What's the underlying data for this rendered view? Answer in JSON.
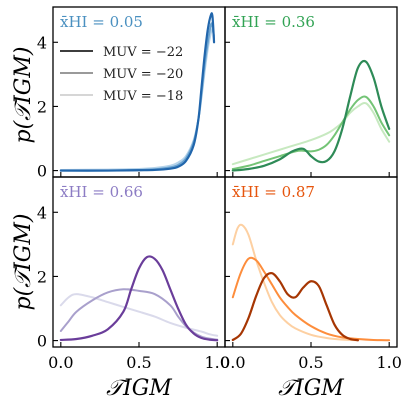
{
  "figure": {
    "ylabel": "p(𝒯IGM)",
    "xlabel": "𝒯IGM"
  },
  "chart_data": [
    {
      "type": "line",
      "panel": "top-left",
      "annotation": "x̄HI = 0.05",
      "annotation_color": "#4a90c0",
      "xlim": [
        -0.05,
        1.05
      ],
      "ylim": [
        -0.2,
        5.1
      ],
      "yticks": [
        "0",
        "2",
        "4"
      ],
      "xticks": [],
      "legend": {
        "placement": "upper-left",
        "entries": [
          {
            "label": "MUV = −22",
            "color": "#222222"
          },
          {
            "label": "MUV = −20",
            "color": "#8c8c8c"
          },
          {
            "label": "MUV = −18",
            "color": "#d0d0d0"
          }
        ]
      },
      "series": [
        {
          "color": "#2166ac",
          "width": 2.2,
          "x": [
            0,
            0.3,
            0.5,
            0.6,
            0.7,
            0.75,
            0.8,
            0.85,
            0.88,
            0.9,
            0.92,
            0.94,
            0.96,
            0.97,
            0.98
          ],
          "y": [
            0,
            0,
            0.01,
            0.02,
            0.06,
            0.12,
            0.3,
            0.8,
            1.6,
            2.6,
            3.6,
            4.4,
            4.85,
            4.8,
            4.0
          ]
        },
        {
          "color": "#6aa3d0",
          "width": 2.0,
          "x": [
            0,
            0.3,
            0.5,
            0.6,
            0.7,
            0.75,
            0.8,
            0.85,
            0.88,
            0.9,
            0.92,
            0.94,
            0.96,
            0.97,
            0.98
          ],
          "y": [
            0,
            0,
            0.02,
            0.04,
            0.1,
            0.18,
            0.38,
            0.9,
            1.6,
            2.4,
            3.3,
            4.0,
            4.55,
            4.5,
            4.1
          ]
        },
        {
          "color": "#b5d3ea",
          "width": 2.0,
          "x": [
            0,
            0.3,
            0.5,
            0.6,
            0.7,
            0.75,
            0.8,
            0.85,
            0.88,
            0.9,
            0.92,
            0.94,
            0.96,
            0.97,
            0.98
          ],
          "y": [
            0.02,
            0.03,
            0.05,
            0.08,
            0.15,
            0.25,
            0.45,
            0.95,
            1.6,
            2.3,
            3.1,
            3.8,
            4.3,
            4.4,
            4.2
          ]
        }
      ]
    },
    {
      "type": "line",
      "panel": "top-right",
      "annotation": "x̄HI = 0.36",
      "annotation_color": "#31a354",
      "xlim": [
        -0.05,
        1.05
      ],
      "ylim": [
        -0.2,
        5.1
      ],
      "yticks": [],
      "xticks": [],
      "series": [
        {
          "color": "#2e8b57",
          "width": 2.2,
          "x": [
            0,
            0.1,
            0.2,
            0.3,
            0.38,
            0.45,
            0.5,
            0.55,
            0.6,
            0.65,
            0.7,
            0.75,
            0.8,
            0.85,
            0.9,
            0.95,
            1.0
          ],
          "y": [
            0,
            0.05,
            0.15,
            0.35,
            0.6,
            0.68,
            0.45,
            0.28,
            0.3,
            0.6,
            1.3,
            2.3,
            3.2,
            3.4,
            2.9,
            2.0,
            1.3
          ]
        },
        {
          "color": "#74c476",
          "width": 2.0,
          "x": [
            0,
            0.1,
            0.2,
            0.3,
            0.4,
            0.45,
            0.5,
            0.55,
            0.6,
            0.65,
            0.7,
            0.75,
            0.8,
            0.85,
            0.9,
            0.95,
            1.0
          ],
          "y": [
            0.05,
            0.15,
            0.3,
            0.45,
            0.6,
            0.62,
            0.6,
            0.65,
            0.8,
            1.1,
            1.5,
            1.9,
            2.2,
            2.3,
            2.0,
            1.5,
            1.1
          ]
        },
        {
          "color": "#c7e9c0",
          "width": 2.0,
          "x": [
            0,
            0.1,
            0.2,
            0.3,
            0.4,
            0.5,
            0.6,
            0.65,
            0.7,
            0.75,
            0.8,
            0.85,
            0.9,
            0.95,
            1.0
          ],
          "y": [
            0.2,
            0.35,
            0.5,
            0.65,
            0.8,
            0.95,
            1.15,
            1.3,
            1.5,
            1.8,
            2.0,
            2.1,
            1.8,
            1.3,
            0.9
          ]
        }
      ]
    },
    {
      "type": "line",
      "panel": "bottom-left",
      "annotation": "x̄HI = 0.66",
      "annotation_color": "#8c7cc4",
      "xlim": [
        -0.05,
        1.05
      ],
      "ylim": [
        -0.2,
        5.1
      ],
      "yticks": [
        "0",
        "2",
        "4"
      ],
      "xticks": [
        "0.0",
        "0.5",
        "1.0"
      ],
      "series": [
        {
          "color": "#6a3d9a",
          "width": 2.2,
          "x": [
            0,
            0.1,
            0.2,
            0.3,
            0.4,
            0.45,
            0.5,
            0.55,
            0.6,
            0.65,
            0.7,
            0.75,
            0.8,
            0.85,
            0.9,
            0.95,
            1.0
          ],
          "y": [
            0.02,
            0.05,
            0.15,
            0.35,
            0.9,
            1.6,
            2.25,
            2.6,
            2.55,
            2.2,
            1.6,
            1.0,
            0.5,
            0.22,
            0.08,
            0.03,
            0.01
          ]
        },
        {
          "color": "#a9a0cc",
          "width": 2.0,
          "x": [
            0,
            0.05,
            0.1,
            0.2,
            0.3,
            0.4,
            0.5,
            0.6,
            0.7,
            0.75,
            0.8,
            0.85,
            0.9,
            0.95,
            1.0
          ],
          "y": [
            0.3,
            0.6,
            0.9,
            1.25,
            1.5,
            1.6,
            1.55,
            1.45,
            1.1,
            0.75,
            0.45,
            0.25,
            0.12,
            0.06,
            0.03
          ]
        },
        {
          "color": "#dadaeb",
          "width": 2.0,
          "x": [
            0,
            0.05,
            0.1,
            0.2,
            0.3,
            0.4,
            0.5,
            0.6,
            0.7,
            0.8,
            0.9,
            0.95,
            1.0
          ],
          "y": [
            1.1,
            1.35,
            1.45,
            1.35,
            1.2,
            1.05,
            0.9,
            0.75,
            0.55,
            0.4,
            0.28,
            0.2,
            0.15
          ]
        }
      ]
    },
    {
      "type": "line",
      "panel": "bottom-right",
      "annotation": "x̄HI = 0.87",
      "annotation_color": "#e6550d",
      "xlim": [
        -0.05,
        1.05
      ],
      "ylim": [
        -0.2,
        5.1
      ],
      "yticks": [],
      "xticks": [
        "0.0",
        "0.5",
        "1.0"
      ],
      "series": [
        {
          "color": "#a63603",
          "width": 2.2,
          "x": [
            0,
            0.05,
            0.1,
            0.15,
            0.2,
            0.25,
            0.3,
            0.35,
            0.4,
            0.45,
            0.5,
            0.55,
            0.6,
            0.65,
            0.7,
            0.75,
            0.8
          ],
          "y": [
            0.02,
            0.2,
            0.7,
            1.4,
            1.95,
            2.1,
            1.85,
            1.45,
            1.35,
            1.65,
            1.85,
            1.7,
            1.1,
            0.5,
            0.18,
            0.05,
            0.01
          ]
        },
        {
          "color": "#fd8d3c",
          "width": 2.0,
          "x": [
            0,
            0.05,
            0.1,
            0.15,
            0.2,
            0.25,
            0.3,
            0.35,
            0.4,
            0.5,
            0.6,
            0.7,
            0.8,
            0.9,
            1.0
          ],
          "y": [
            1.35,
            2.1,
            2.55,
            2.5,
            2.15,
            1.75,
            1.35,
            1.05,
            0.8,
            0.45,
            0.22,
            0.1,
            0.05,
            0.02,
            0.01
          ]
        },
        {
          "color": "#fdd0a2",
          "width": 2.0,
          "x": [
            0,
            0.03,
            0.06,
            0.1,
            0.15,
            0.2,
            0.25,
            0.3,
            0.35,
            0.4,
            0.5,
            0.6,
            0.7,
            0.8
          ],
          "y": [
            3.0,
            3.5,
            3.6,
            3.3,
            2.5,
            1.8,
            1.2,
            0.8,
            0.55,
            0.38,
            0.18,
            0.08,
            0.03,
            0.01
          ]
        }
      ]
    }
  ]
}
